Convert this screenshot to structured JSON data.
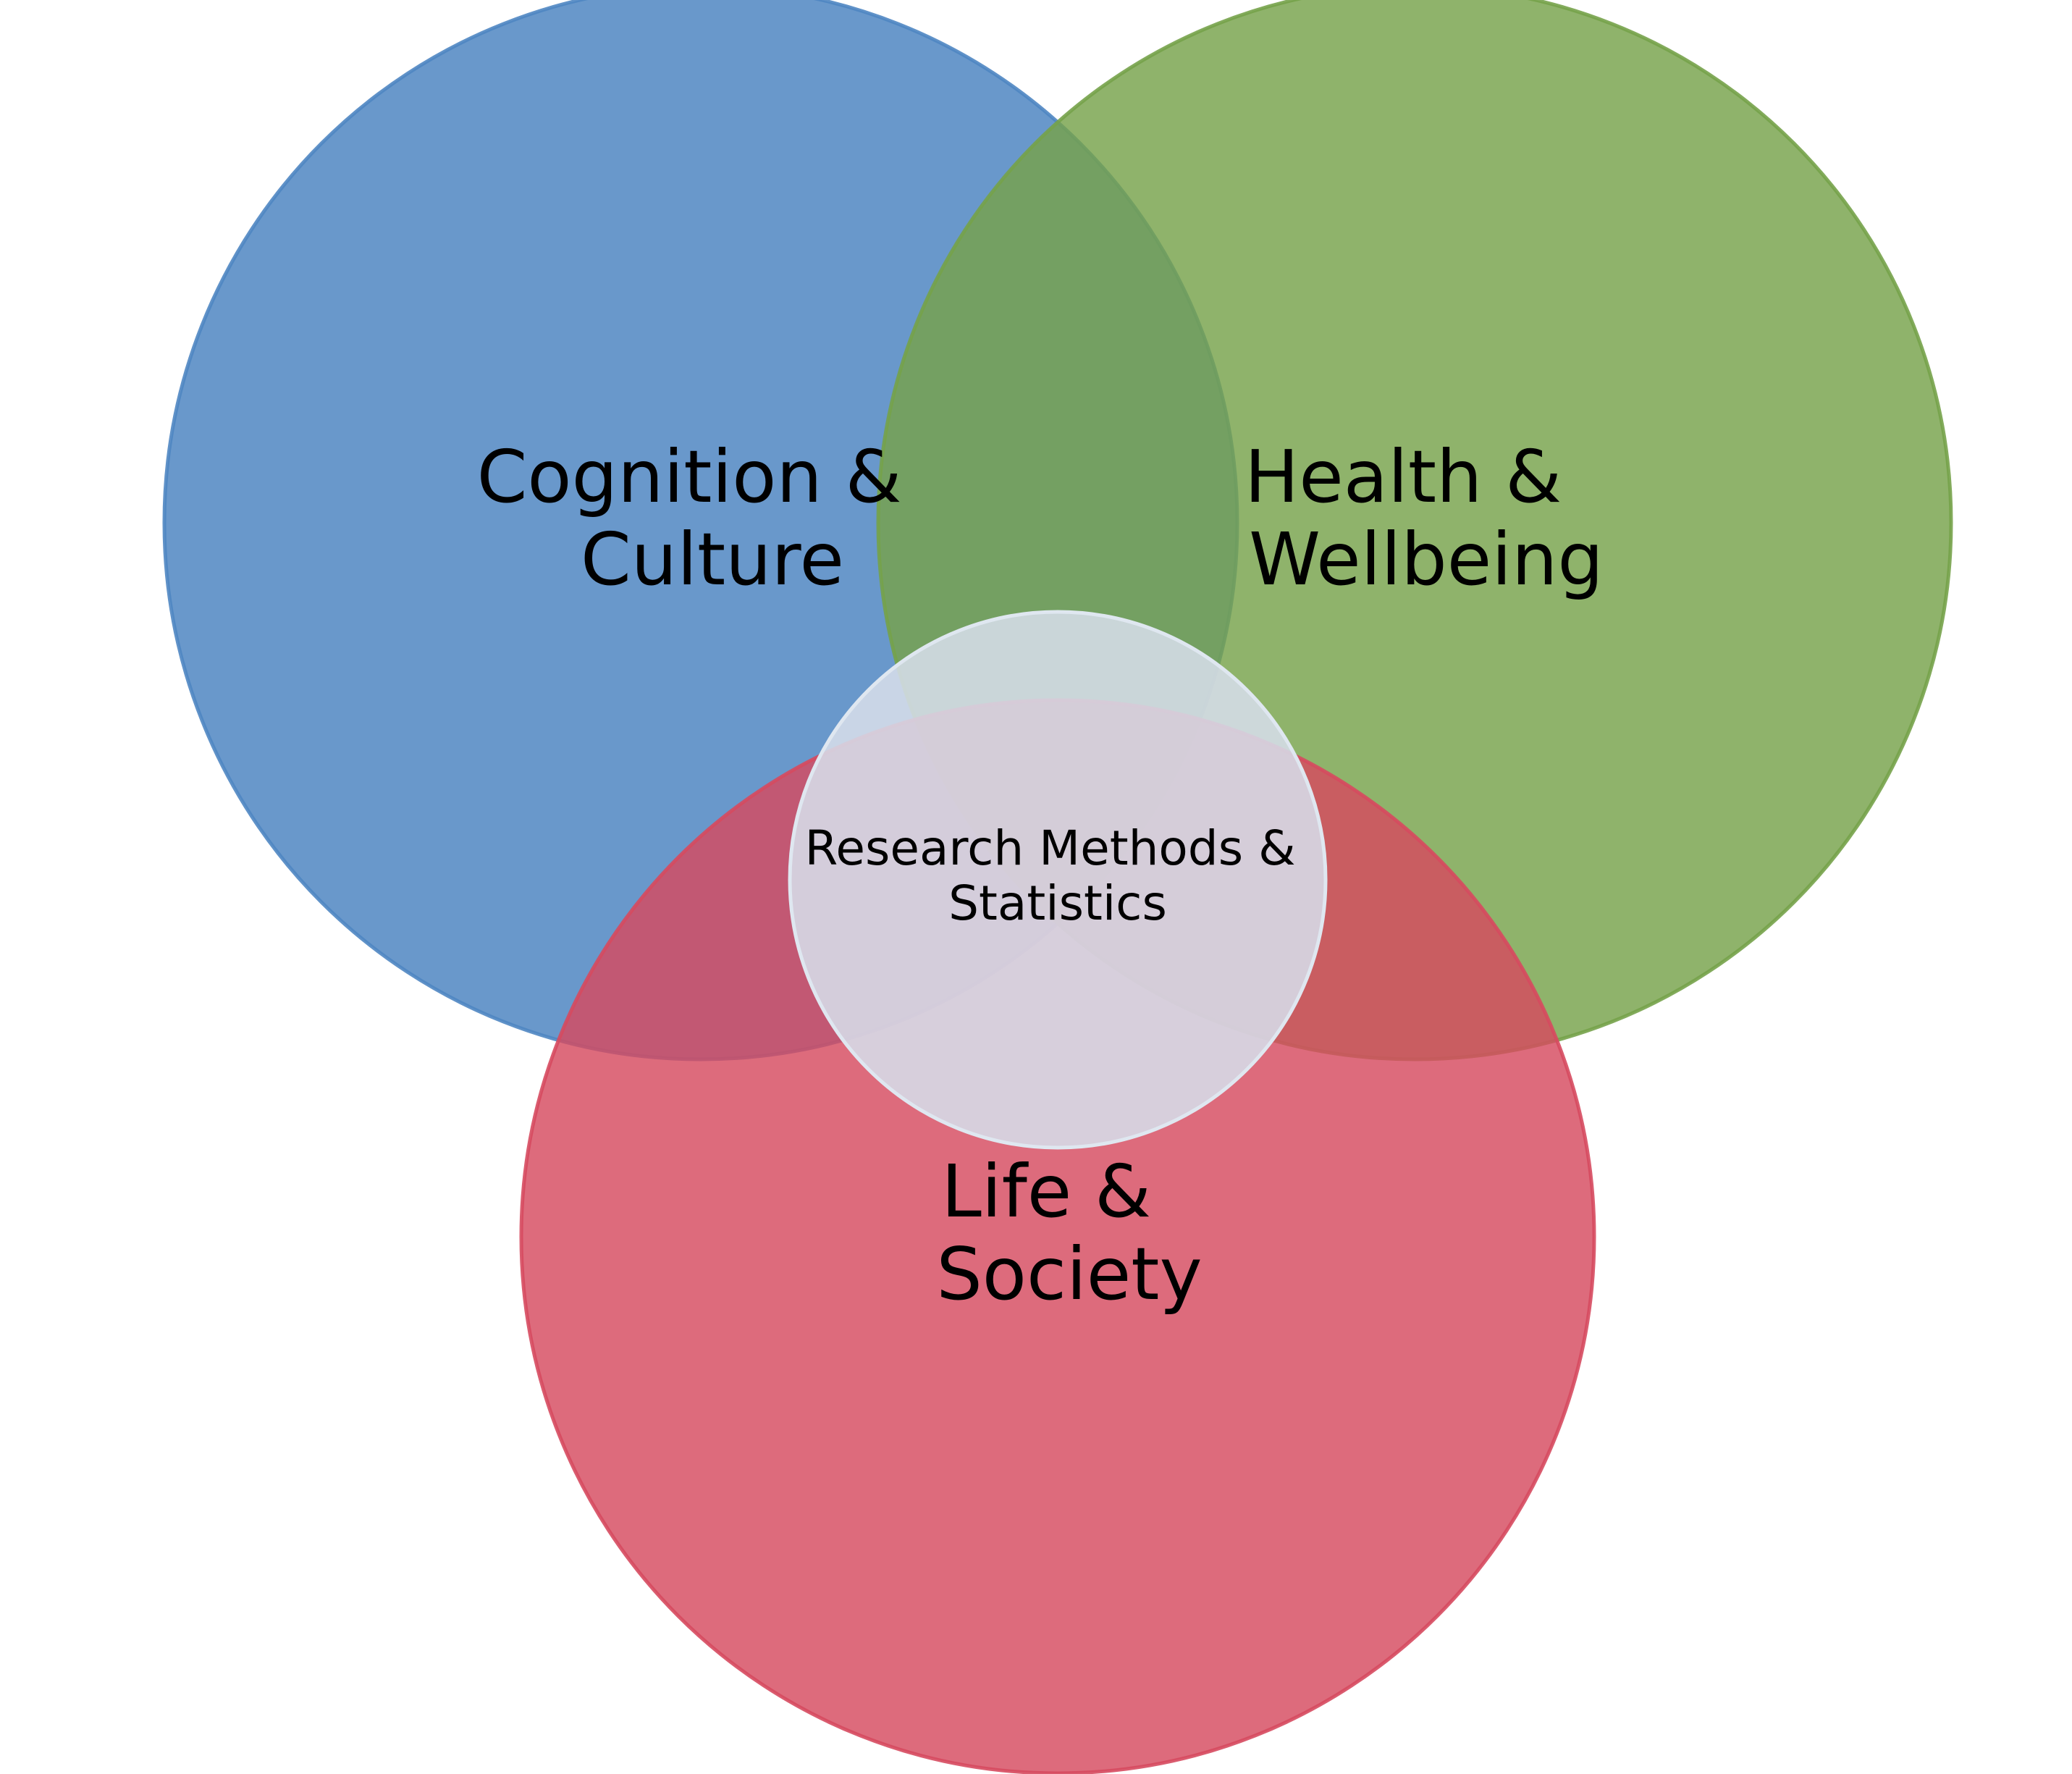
{
  "diagram": {
    "type": "venn",
    "circles": [
      {
        "id": "cognition",
        "label_lines": [
          "Cognition &",
          "Culture"
        ],
        "fill": "#4f86c2",
        "stroke": "#4f86c2"
      },
      {
        "id": "health",
        "label_lines": [
          "Health &",
          "Wellbeing"
        ],
        "fill": "#76a24a",
        "stroke": "#76a24a"
      },
      {
        "id": "life",
        "label_lines": [
          "Life &",
          "Society"
        ],
        "fill": "#d64a5f",
        "stroke": "#d64a5f"
      }
    ],
    "center": {
      "label_lines": [
        "Research Methods &",
        "Statistics"
      ],
      "fill": "#d6dde9",
      "stroke": "#dfe7f0"
    }
  }
}
